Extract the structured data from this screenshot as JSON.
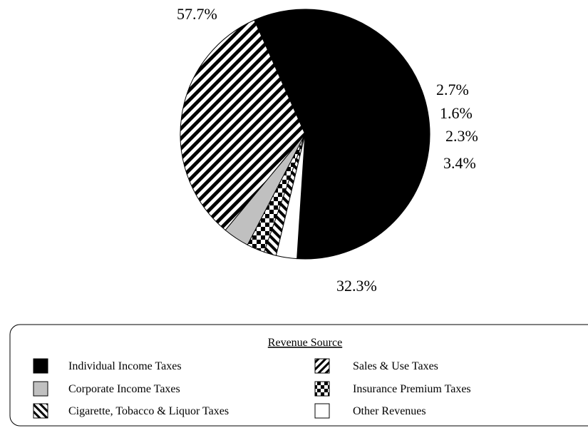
{
  "chart_data": {
    "type": "pie",
    "title": "",
    "legend_title": "Revenue Source",
    "legend_placement": "bottom",
    "slices": [
      {
        "name": "Individual Income Taxes",
        "value": 57.7,
        "label": "57.7%",
        "pattern": "solid-black"
      },
      {
        "name": "Other Revenues",
        "value": 2.7,
        "label": "2.7%",
        "pattern": "white"
      },
      {
        "name": "Cigarette, Tobacco & Liquor Taxes",
        "value": 1.6,
        "label": "1.6%",
        "pattern": "diagonal-backslash"
      },
      {
        "name": "Insurance Premium Taxes",
        "value": 2.3,
        "label": "2.3%",
        "pattern": "checkerboard"
      },
      {
        "name": "Corporate Income Taxes",
        "value": 3.4,
        "label": "3.4%",
        "pattern": "gray"
      },
      {
        "name": "Sales & Use Taxes",
        "value": 32.3,
        "label": "32.3%",
        "pattern": "diagonal-slash"
      }
    ],
    "legend": [
      {
        "name": "Individual Income Taxes",
        "pattern": "solid-black"
      },
      {
        "name": "Sales & Use Taxes",
        "pattern": "diagonal-slash"
      },
      {
        "name": "Corporate Income Taxes",
        "pattern": "gray"
      },
      {
        "name": "Insurance Premium Taxes",
        "pattern": "checkerboard"
      },
      {
        "name": "Cigarette, Tobacco & Liquor Taxes",
        "pattern": "diagonal-backslash"
      },
      {
        "name": "Other Revenues",
        "pattern": "white"
      }
    ],
    "colors": {
      "black": "#000000",
      "gray": "#c0c0c0",
      "white": "#ffffff"
    }
  }
}
